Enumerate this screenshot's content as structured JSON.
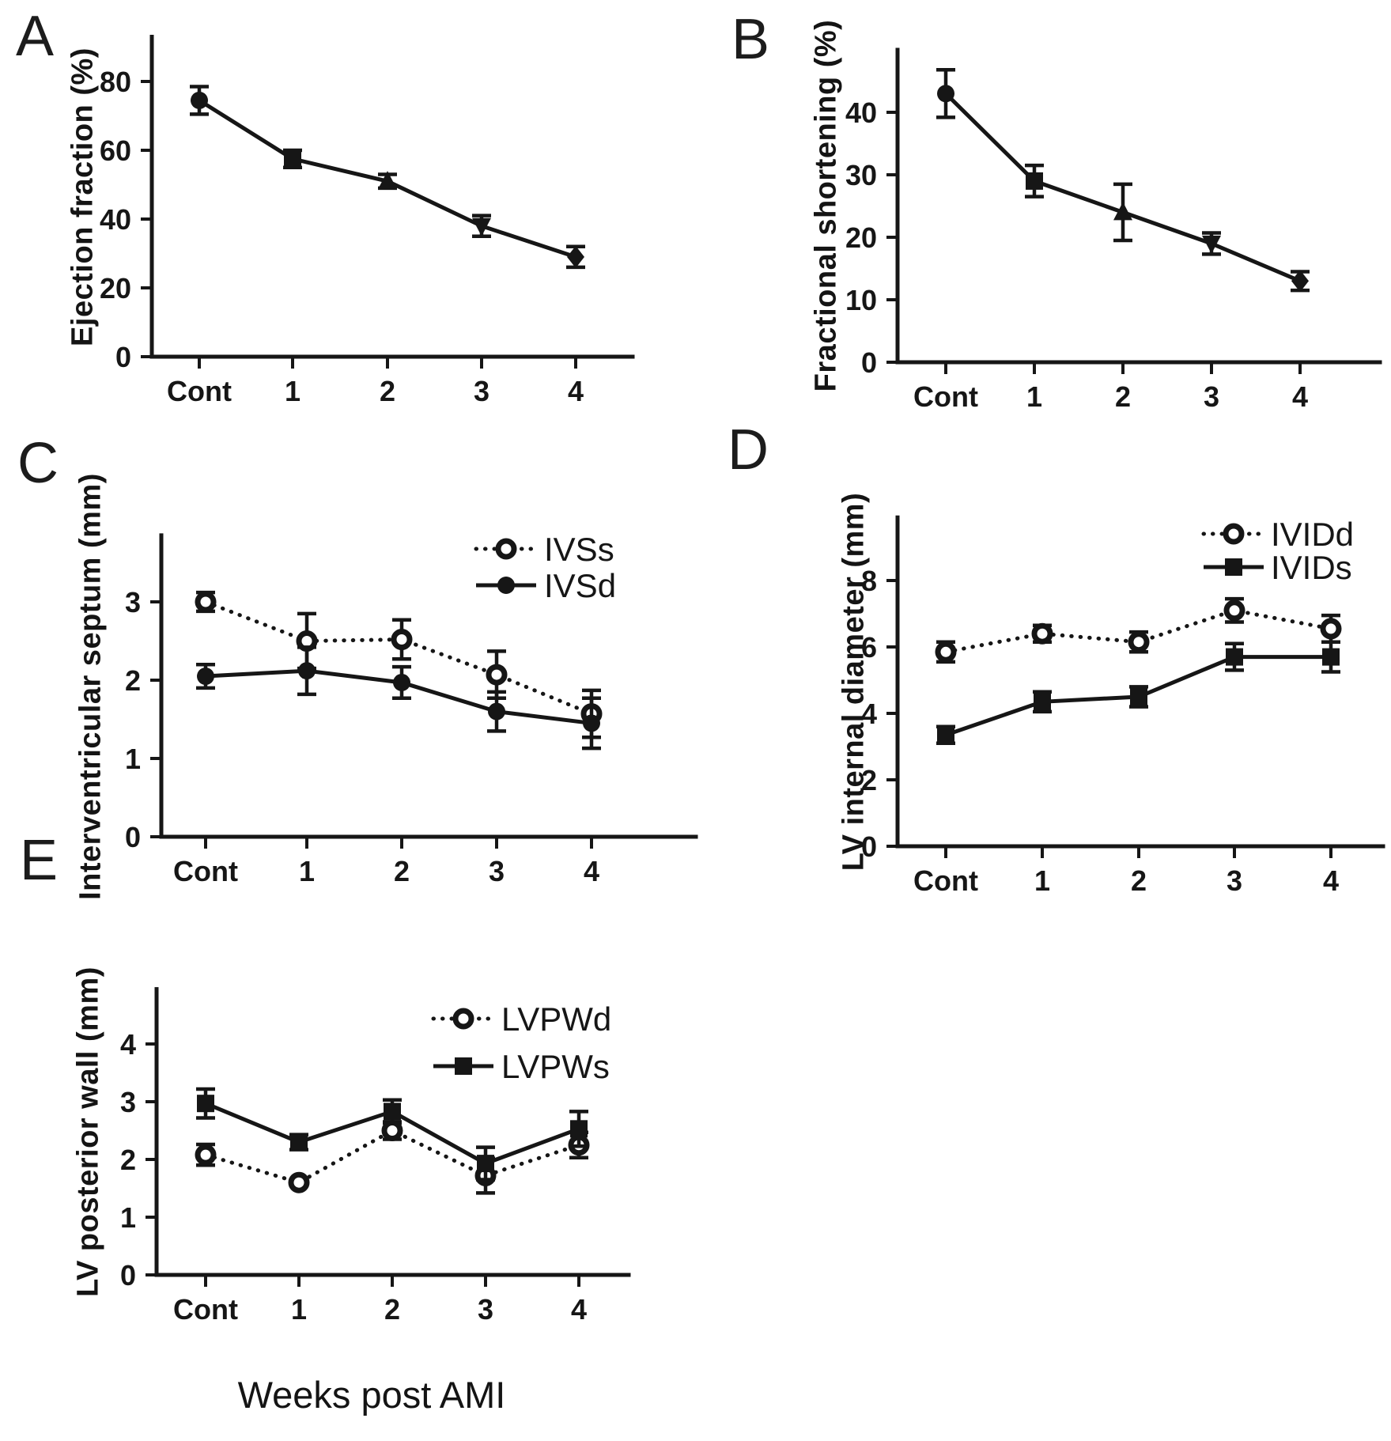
{
  "colors": {
    "ink": "#161616",
    "background": "#ffffff"
  },
  "xlabel": "Weeks post AMI",
  "chart_data": [
    {
      "id": "A",
      "panel_label": "A",
      "type": "line",
      "ylabel": "Ejection fraction (%)",
      "categories": [
        "Cont",
        "1",
        "2",
        "3",
        "4"
      ],
      "yticks": [
        0,
        20,
        40,
        60,
        80
      ],
      "ylim": [
        0,
        93
      ],
      "grid": false,
      "legend": false,
      "series": [
        {
          "name": "ejection-fraction",
          "line": "solid",
          "markers": [
            "circle",
            "square",
            "triangle-up",
            "triangle-down",
            "diamond"
          ],
          "values": [
            74.5,
            57.5,
            51,
            38,
            29
          ],
          "errors": [
            4,
            2.5,
            2,
            3,
            3
          ]
        }
      ]
    },
    {
      "id": "B",
      "panel_label": "B",
      "type": "line",
      "ylabel": "Fractional shortening (%)",
      "categories": [
        "Cont",
        "1",
        "2",
        "3",
        "4"
      ],
      "yticks": [
        0,
        10,
        20,
        30,
        40
      ],
      "ylim": [
        0,
        50
      ],
      "grid": false,
      "legend": false,
      "series": [
        {
          "name": "fractional-shortening",
          "line": "solid",
          "markers": [
            "circle",
            "square",
            "triangle-up",
            "triangle-down",
            "diamond"
          ],
          "values": [
            43,
            29,
            24,
            19,
            13
          ],
          "errors": [
            3.8,
            2.5,
            4.5,
            1.7,
            1.5
          ]
        }
      ]
    },
    {
      "id": "C",
      "panel_label": "C",
      "type": "line",
      "ylabel": "Interventricular septum (mm)",
      "categories": [
        "Cont",
        "1",
        "2",
        "3",
        "4"
      ],
      "yticks": [
        0,
        1,
        2,
        3
      ],
      "ylim": [
        0,
        3.85
      ],
      "grid": false,
      "legend": true,
      "series": [
        {
          "name": "IVSs",
          "marker": "circle-open",
          "line": "dotted",
          "values": [
            3.0,
            2.5,
            2.52,
            2.07,
            1.57
          ],
          "errors": [
            0.12,
            0.35,
            0.25,
            0.3,
            0.3
          ]
        },
        {
          "name": "IVSd",
          "marker": "circle",
          "line": "solid",
          "values": [
            2.05,
            2.12,
            1.97,
            1.6,
            1.45
          ],
          "errors": [
            0.15,
            0.3,
            0.2,
            0.25,
            0.32
          ]
        }
      ]
    },
    {
      "id": "D",
      "panel_label": "D",
      "type": "line",
      "ylabel": "LV internal diameter (mm)",
      "categories": [
        "Cont",
        "1",
        "2",
        "3",
        "4"
      ],
      "yticks": [
        0,
        2,
        4,
        6,
        8
      ],
      "ylim": [
        0,
        9.9
      ],
      "grid": false,
      "legend": true,
      "series": [
        {
          "name": "IVIDd",
          "marker": "circle-open",
          "line": "dotted",
          "values": [
            5.85,
            6.4,
            6.15,
            7.1,
            6.55
          ],
          "errors": [
            0.3,
            0.25,
            0.3,
            0.35,
            0.4
          ]
        },
        {
          "name": "IVIDs",
          "marker": "square",
          "line": "solid",
          "values": [
            3.35,
            4.35,
            4.5,
            5.7,
            5.7
          ],
          "errors": [
            0.25,
            0.3,
            0.3,
            0.4,
            0.45
          ]
        }
      ]
    },
    {
      "id": "E",
      "panel_label": "E",
      "type": "line",
      "ylabel": "LV posterior wall (mm)",
      "categories": [
        "Cont",
        "1",
        "2",
        "3",
        "4"
      ],
      "yticks": [
        0,
        1,
        2,
        3,
        4
      ],
      "ylim": [
        0,
        4.95
      ],
      "grid": false,
      "legend": true,
      "series": [
        {
          "name": "LVPWd",
          "marker": "circle-open",
          "line": "dotted",
          "values": [
            2.08,
            1.6,
            2.5,
            1.72,
            2.25
          ],
          "errors": [
            0.18,
            0.04,
            0.15,
            0.3,
            0.22
          ]
        },
        {
          "name": "LVPWs",
          "marker": "square",
          "line": "solid",
          "values": [
            2.97,
            2.3,
            2.83,
            1.93,
            2.53
          ],
          "errors": [
            0.25,
            0.13,
            0.2,
            0.28,
            0.3
          ]
        }
      ]
    }
  ]
}
